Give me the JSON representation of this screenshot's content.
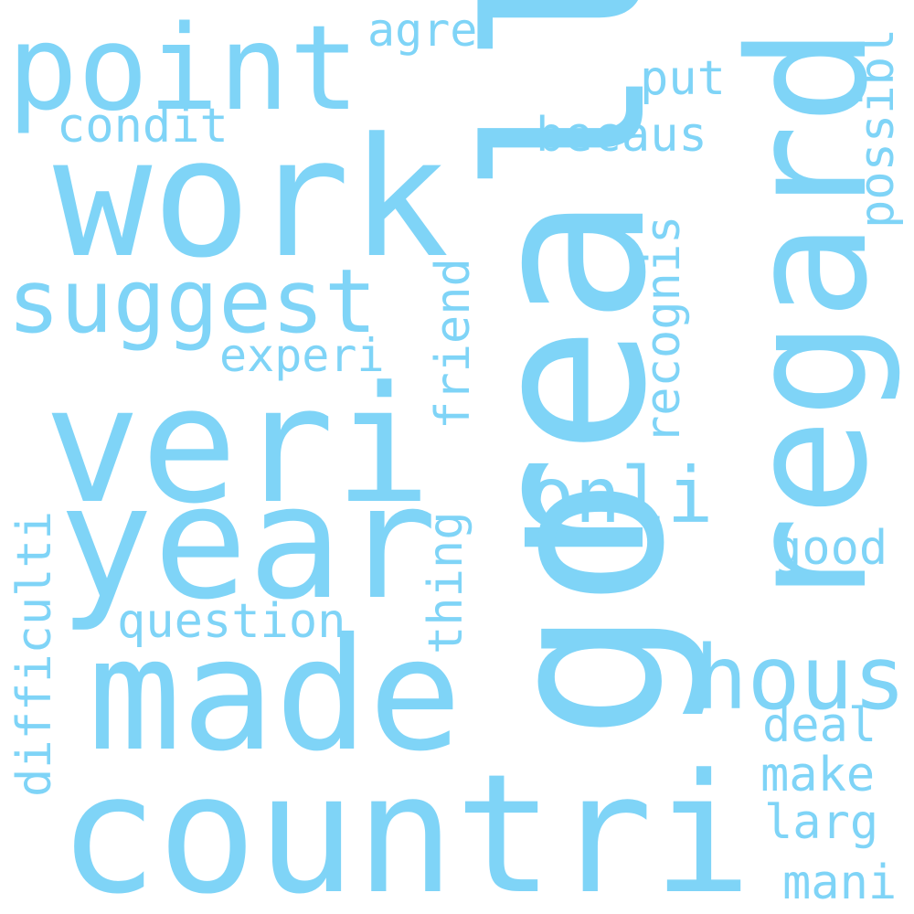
{
  "word_color": "#7fd4f7",
  "background": "#ffffff",
  "words": [
    "point",
    "agre",
    "condit",
    "work",
    "suggest",
    "experi",
    "veri",
    "year",
    "made",
    "countri",
    "difficulti",
    "question",
    "thing",
    "friend",
    "recognis",
    "put",
    "becaus",
    "onli",
    "good",
    "hous",
    "deal",
    "make",
    "larg",
    "mani",
    "regard",
    "possibl",
    "realli",
    "go"
  ]
}
